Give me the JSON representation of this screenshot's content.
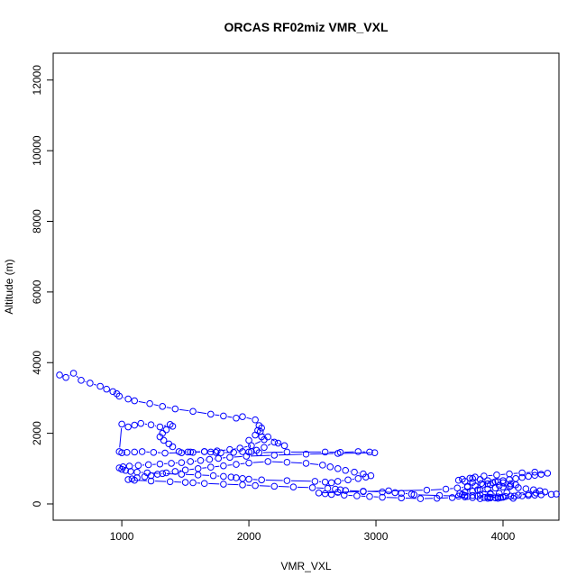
{
  "chart_data": {
    "type": "scatter",
    "title": "ORCAS RF02miz VMR_VXL",
    "xlabel": "VMR_VXL",
    "ylabel": "Altitude (m)",
    "xlim": [
      460,
      4440
    ],
    "ylim": [
      -460,
      12760
    ],
    "x_ticks": [
      1000,
      2000,
      3000,
      4000
    ],
    "y_ticks": [
      0,
      2000,
      4000,
      6000,
      8000,
      10000,
      12000
    ],
    "x_tick_labels": [
      "1000",
      "2000",
      "3000",
      "4000"
    ],
    "y_tick_labels": [
      "0",
      "2000",
      "4000",
      "6000",
      "8000",
      "10000",
      "12000"
    ],
    "grid": false,
    "legend": "none",
    "point_color": "#0000ff",
    "line_color": "#0000ff",
    "marker": "open-circle",
    "series": [
      {
        "x": [
          510,
          560,
          620,
          680,
          750,
          830,
          880,
          930,
          960,
          980,
          1050,
          1100,
          1220,
          1320,
          1420,
          1560,
          1700,
          1800,
          1900,
          1950,
          2050,
          2080,
          2100,
          2090,
          2150,
          2230,
          2280,
          2200,
          2120,
          2060,
          2020,
          2000,
          2050,
          2070,
          2100,
          2120,
          2020,
          1930,
          1850,
          1750,
          1650,
          1540,
          1450,
          1400,
          1370,
          1330,
          1300,
          1320,
          1350,
          1400,
          1380,
          1300,
          1230,
          1150,
          1100,
          1050,
          1000,
          980,
          1000,
          1040,
          1100,
          1160,
          1250,
          1340,
          1470,
          1520,
          1560,
          1650,
          1700,
          1740,
          1780,
          1880,
          1950,
          2000,
          2080,
          2300,
          2600,
          2720,
          2860,
          2950,
          2990,
          2700,
          2450,
          2200,
          1980,
          1850,
          1760,
          1690,
          1620,
          1540,
          1470,
          1390,
          1300,
          1210,
          1130,
          1060,
          1010,
          980,
          1000,
          1030,
          1070,
          1120,
          1200,
          1320,
          1470,
          1600,
          1720,
          1800,
          1860,
          1900,
          1950,
          2000,
          2100,
          2300,
          2520,
          2600,
          2650,
          2700,
          2780,
          2860,
          2920,
          2960,
          2900,
          2830,
          2760,
          2700,
          2640,
          2580,
          2450,
          2300,
          2150,
          2000,
          1900,
          1800,
          1700,
          1600,
          1500,
          1420,
          1350,
          1280,
          1230,
          1180,
          1120,
          1080,
          1050,
          1100,
          1230,
          1380,
          1500,
          1560,
          1650,
          1800,
          1950,
          2050,
          2200,
          2350,
          2500,
          2620,
          2680,
          2720,
          2760,
          2900,
          3050,
          3150,
          3200,
          3280,
          3300,
          3500,
          3650,
          3700,
          3600,
          3480,
          3350,
          3200,
          3050,
          2950,
          2850,
          2750,
          2650,
          2600,
          2550,
          2700,
          2900,
          3100,
          3400,
          3550,
          3640,
          3720,
          3780,
          3840,
          3880,
          3920,
          3960,
          4000,
          4050,
          4100,
          4150,
          4200,
          4250,
          4300,
          4350,
          4250,
          4150,
          4050,
          3950,
          3850,
          3780,
          3740,
          3680,
          3650,
          3700,
          3760,
          3830,
          3900,
          3970,
          4050,
          4120,
          4180,
          4240,
          4290,
          4330,
          4260,
          4200,
          4120,
          4060,
          4000,
          3940,
          3880,
          3820,
          3760,
          3720,
          3700,
          3680,
          3660,
          3700,
          3760,
          3820,
          3880,
          3940,
          4000,
          4060,
          4100,
          4060,
          4000,
          3940,
          3880,
          3820,
          3760,
          3720,
          3800,
          3900,
          4000,
          4080,
          3980,
          3880,
          3800,
          3760,
          3820,
          3900,
          3970,
          4030,
          3960,
          3900,
          3850,
          3900,
          3960,
          4020,
          4090,
          4150,
          4200,
          4250,
          4300,
          4380,
          4420
        ],
        "y": [
          3650,
          3580,
          3700,
          3500,
          3420,
          3330,
          3250,
          3180,
          3120,
          3050,
          2970,
          2920,
          2840,
          2760,
          2690,
          2620,
          2540,
          2490,
          2430,
          2470,
          2380,
          2220,
          2150,
          2050,
          1900,
          1720,
          1650,
          1750,
          1600,
          1520,
          1480,
          1800,
          1950,
          2080,
          1900,
          1820,
          1650,
          1580,
          1540,
          1500,
          1480,
          1470,
          1480,
          1620,
          1700,
          1800,
          1900,
          2000,
          2100,
          2200,
          2250,
          2180,
          2240,
          2280,
          2230,
          2180,
          2260,
          1480,
          1450,
          1460,
          1470,
          1480,
          1460,
          1440,
          1450,
          1470,
          1460,
          1480,
          1470,
          1460,
          1450,
          1460,
          1480,
          1470,
          1450,
          1470,
          1470,
          1460,
          1480,
          1470,
          1450,
          1430,
          1410,
          1380,
          1350,
          1320,
          1290,
          1260,
          1230,
          1200,
          1170,
          1150,
          1130,
          1110,
          1090,
          1070,
          1050,
          1020,
          980,
          950,
          920,
          900,
          880,
          860,
          840,
          820,
          800,
          780,
          760,
          740,
          720,
          700,
          680,
          660,
          640,
          620,
          600,
          640,
          680,
          720,
          760,
          800,
          850,
          900,
          950,
          1000,
          1050,
          1100,
          1150,
          1180,
          1200,
          1160,
          1120,
          1080,
          1040,
          1000,
          960,
          920,
          880,
          840,
          800,
          770,
          740,
          710,
          690,
          670,
          650,
          630,
          610,
          600,
          580,
          560,
          540,
          520,
          500,
          480,
          460,
          440,
          420,
          400,
          380,
          360,
          340,
          320,
          300,
          280,
          260,
          240,
          220,
          200,
          180,
          160,
          150,
          170,
          190,
          210,
          230,
          250,
          270,
          290,
          310,
          330,
          350,
          370,
          390,
          420,
          450,
          480,
          510,
          540,
          570,
          600,
          630,
          660,
          690,
          720,
          750,
          780,
          810,
          840,
          870,
          900,
          880,
          850,
          820,
          790,
          760,
          730,
          700,
          670,
          640,
          610,
          580,
          550,
          520,
          490,
          460,
          430,
          400,
          370,
          340,
          310,
          280,
          250,
          220,
          190,
          170,
          160,
          150,
          180,
          210,
          240,
          270,
          300,
          330,
          360,
          390,
          420,
          450,
          480,
          510,
          540,
          570,
          600,
          630,
          660,
          690,
          720,
          500,
          400,
          300,
          200,
          160,
          180,
          200,
          220,
          240,
          260,
          280,
          300,
          320,
          160,
          170,
          180,
          190,
          200,
          210,
          220,
          230,
          240,
          250,
          260,
          270,
          280
        ]
      }
    ]
  }
}
